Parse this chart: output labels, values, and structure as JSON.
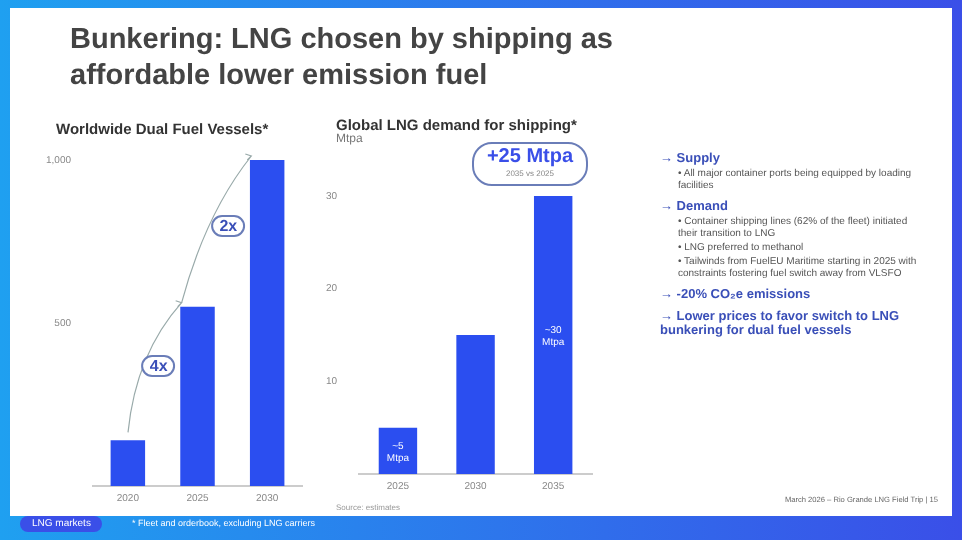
{
  "chart_data": [
    {
      "type": "bar",
      "title": "Worldwide Dual Fuel Vessels*",
      "categories": [
        "2020",
        "2025",
        "2030"
      ],
      "values": [
        140,
        550,
        1000
      ],
      "color": "#2b4ef0",
      "ylim": [
        0,
        1000
      ],
      "yticks": [
        500,
        {
          "value": 1000,
          "label": "1,000"
        }
      ],
      "grid": false,
      "annotations": [
        "4x",
        "2x",
        "LNG markets",
        "* Fleet and orderbook, excluding LNG carriers"
      ]
    },
    {
      "type": "bar",
      "title": "Global LNG demand for shipping*",
      "ylabel": "Mtpa",
      "categories": [
        "2025",
        "2030",
        "2035"
      ],
      "values": [
        5,
        15,
        30
      ],
      "color": "#2b4ef0",
      "ylim": [
        0,
        30
      ],
      "yticks": [
        10,
        20,
        30
      ],
      "grid": false,
      "value_labels": [
        "~5 Mtpa",
        null,
        "~30 Mtpa"
      ],
      "annotations": [
        "+25 Mtpa",
        "2035 vs 2025",
        "Source: estimates"
      ]
    },
    {
      "type": "other",
      "title": "Bunkering: LNG chosen by shipping as affordable lower emission fuel",
      "annotations": [
        "→ Supply",
        "• All major container ports being equipped by loading facilities",
        "→ Demand",
        "• Container shipping lines (62% of the fleet) initiated their transition to LNG",
        "• LNG preferred to methanol",
        "• Tailwinds from FuelEU Maritime starting in 2025 with constraints fostering fuel switch away from VLSFO",
        "→ -20% CO₂e emissions",
        "→ Lower prices to favor switch to LNG bunkering for dual fuel vessels",
        "March 2026 – Rio Grande LNG Field Trip | 15"
      ]
    }
  ]
}
